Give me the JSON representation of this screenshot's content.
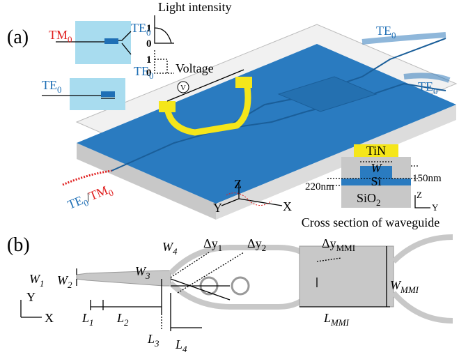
{
  "panel_a": {
    "label": "(a)",
    "light_intensity": "Light intensity",
    "plot1_ticks": [
      "1",
      "0"
    ],
    "plot2_ticks": [
      "1",
      "0"
    ],
    "voltage": "Voltage",
    "voltage_symbol": "V",
    "inset1": {
      "input": {
        "base": "TM",
        "sub": "0"
      },
      "out_top": {
        "base": "TE",
        "sub": "0"
      },
      "out_bottom": {
        "base": "TE",
        "sub": "0"
      }
    },
    "inset2": {
      "input": {
        "base": "TE",
        "sub": "0"
      }
    },
    "outputs": [
      {
        "base": "TE",
        "sub": "0"
      },
      {
        "base": "TE",
        "sub": "0"
      }
    ],
    "input": {
      "te": {
        "base": "TE",
        "sub": "0"
      },
      "slash": "/",
      "tm": {
        "base": "TM",
        "sub": "0"
      }
    },
    "axes": {
      "z": "Z",
      "y": "Y",
      "x": "X"
    },
    "cross_section": {
      "tin": "TiN",
      "w": "W",
      "si": "Si",
      "h1": "150nm",
      "h2": "220nm",
      "sio2": {
        "base": "SiO",
        "sub": "2"
      },
      "z": "Z",
      "y": "Y",
      "caption": "Cross section of waveguide"
    }
  },
  "panel_b": {
    "label": "(b)",
    "w1": {
      "base": "W",
      "sub": "1"
    },
    "w2": {
      "base": "W",
      "sub": "2"
    },
    "w3": {
      "base": "W",
      "sub": "3"
    },
    "w4": {
      "base": "W",
      "sub": "4"
    },
    "dy1": {
      "base": "Δy",
      "sub": "1"
    },
    "dy2": {
      "base": "Δy",
      "sub": "2"
    },
    "dy_mmi": {
      "base": "Δy",
      "sub": "MMI"
    },
    "w_mmi": {
      "base": "W",
      "sub": "MMI"
    },
    "l1": {
      "base": "L",
      "sub": "1"
    },
    "l2": {
      "base": "L",
      "sub": "2"
    },
    "l3": {
      "base": "L",
      "sub": "3"
    },
    "l4": {
      "base": "L",
      "sub": "4"
    },
    "l_mmi": {
      "base": "L",
      "sub": "MMI"
    },
    "axes": {
      "y": "Y",
      "x": "X"
    }
  }
}
